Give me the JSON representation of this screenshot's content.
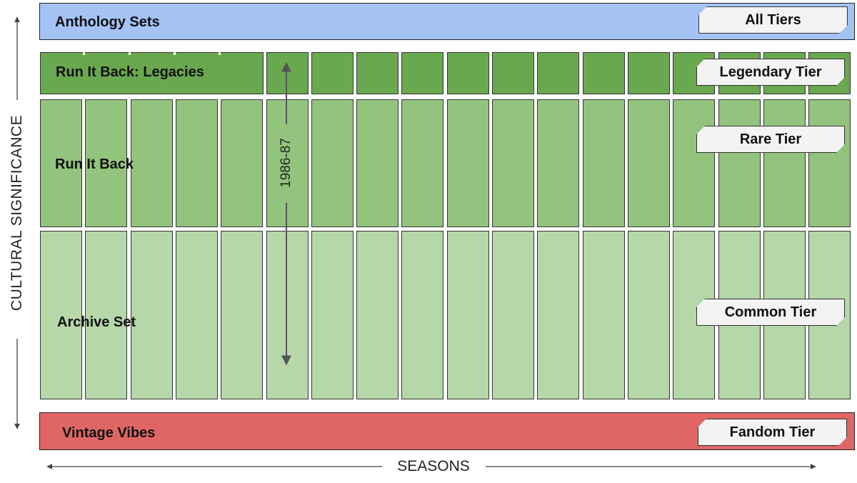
{
  "diagram": {
    "top_band": {
      "label": "Anthology Sets",
      "tier": "All Tiers",
      "color": "#a4c2f4"
    },
    "rows": [
      {
        "label": "Run It Back: Legacies",
        "tier": "Legendary Tier",
        "color": "#6aa84f"
      },
      {
        "label": "Run It Back",
        "tier": "Rare Tier",
        "color": "#93c47d"
      },
      {
        "label": "Archive Set",
        "tier": "Common Tier",
        "color": "#b6d7a8"
      }
    ],
    "bottom_band": {
      "label": "Vintage Vibes",
      "tier": "Fandom Tier",
      "color": "#e06666"
    },
    "season_marker": "1986-87",
    "y_axis": "CULTURAL SIGNIFICANCE",
    "x_axis": "SEASONS",
    "columns": 18
  }
}
